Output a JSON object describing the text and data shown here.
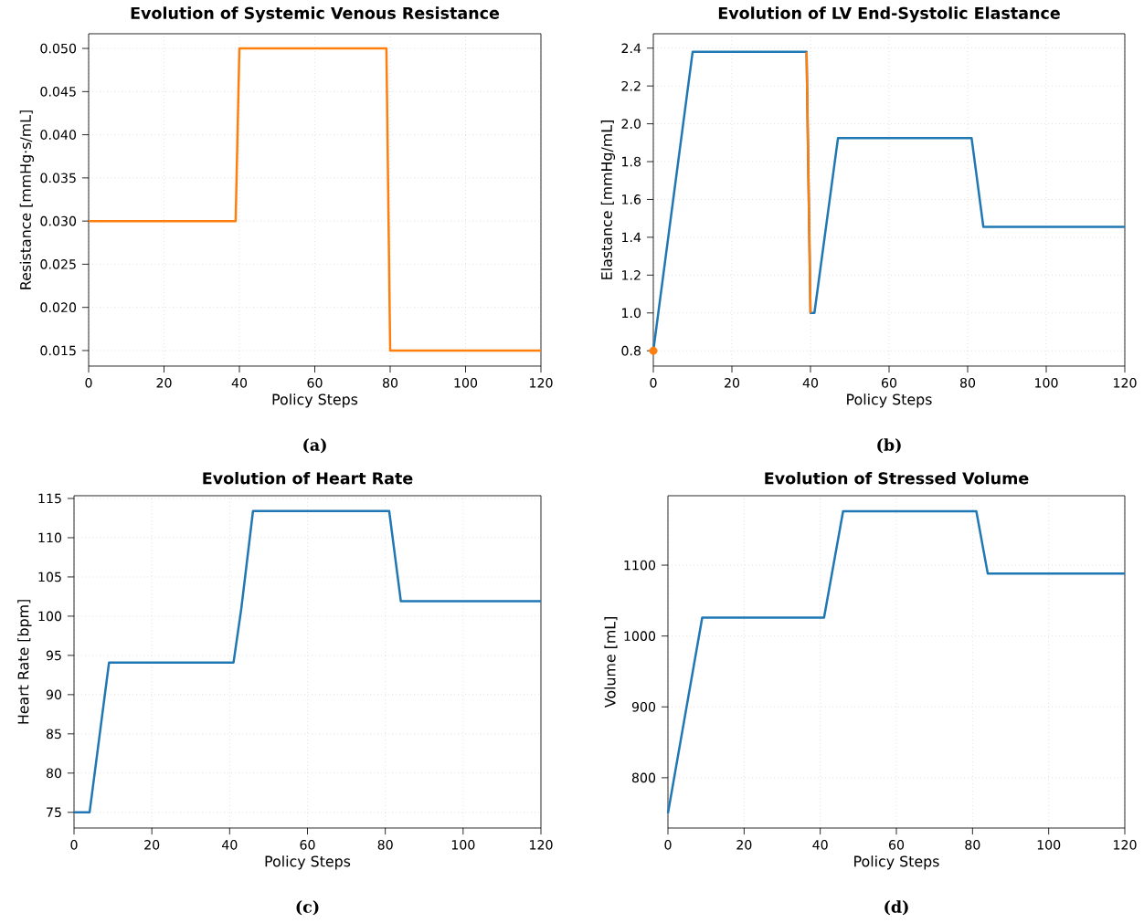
{
  "chart_data": [
    {
      "type": "line",
      "title": "Evolution of Systemic Venous Resistance",
      "xlabel": "Policy Steps",
      "ylabel": "Resistance [mmHg·s/mL]",
      "annotations": [
        "(a)"
      ],
      "grid": true,
      "xlim": [
        0,
        120
      ],
      "ylim": [
        0.0132,
        0.0517
      ],
      "xticks": [
        0,
        20,
        40,
        60,
        80,
        100,
        120
      ],
      "yticks": [
        {
          "value": 0.015,
          "label": "0.015"
        },
        {
          "value": 0.02,
          "label": "0.020"
        },
        {
          "value": 0.025,
          "label": "0.025"
        },
        {
          "value": 0.03,
          "label": "0.030"
        },
        {
          "value": 0.035,
          "label": "0.035"
        },
        {
          "value": 0.04,
          "label": "0.040"
        },
        {
          "value": 0.045,
          "label": "0.045"
        },
        {
          "value": 0.05,
          "label": "0.050"
        }
      ],
      "series": [
        {
          "color": "#ff7f0e",
          "x": [
            0,
            39,
            40,
            79,
            80,
            120
          ],
          "values": [
            0.03,
            0.03,
            0.05,
            0.05,
            0.015,
            0.015
          ]
        }
      ]
    },
    {
      "type": "line",
      "title": "Evolution of LV End-Systolic Elastance",
      "xlabel": "Policy Steps",
      "ylabel": "Elastance [mmHg/mL]",
      "annotations": [
        "(b)"
      ],
      "grid": true,
      "xlim": [
        0,
        120
      ],
      "ylim": [
        0.719,
        2.476
      ],
      "xticks": [
        0,
        20,
        40,
        60,
        80,
        100,
        120
      ],
      "yticks": [
        {
          "value": 0.8,
          "label": "0.8"
        },
        {
          "value": 1.0,
          "label": "1.0"
        },
        {
          "value": 1.2,
          "label": "1.2"
        },
        {
          "value": 1.4,
          "label": "1.4"
        },
        {
          "value": 1.6,
          "label": "1.6"
        },
        {
          "value": 1.8,
          "label": "1.8"
        },
        {
          "value": 2.0,
          "label": "2.0"
        },
        {
          "value": 2.2,
          "label": "2.2"
        },
        {
          "value": 2.4,
          "label": "2.4"
        }
      ],
      "series": [
        {
          "color": "#1f77b4",
          "x": [
            0,
            10,
            39,
            40,
            41,
            47,
            81,
            84,
            120
          ],
          "values": [
            0.8,
            2.38,
            2.38,
            1.0,
            1.0,
            1.925,
            1.925,
            1.455,
            1.455
          ]
        },
        {
          "color": "#ff7f0e",
          "x": [
            39,
            40
          ],
          "values": [
            2.38,
            1.0
          ]
        },
        {
          "type": "scatter",
          "marker": "circle",
          "color": "#ff7f0e",
          "x": [
            0
          ],
          "values": [
            0.8
          ]
        }
      ]
    },
    {
      "type": "line",
      "title": "Evolution of Heart Rate",
      "xlabel": "Policy Steps",
      "ylabel": "Heart Rate [bpm]",
      "annotations": [
        "(c)"
      ],
      "grid": true,
      "xlim": [
        0,
        120
      ],
      "ylim": [
        73.0,
        115.35
      ],
      "xticks": [
        0,
        20,
        40,
        60,
        80,
        100,
        120
      ],
      "yticks": [
        75,
        80,
        85,
        90,
        95,
        100,
        105,
        110,
        115
      ],
      "series": [
        {
          "color": "#1f77b4",
          "x": [
            0,
            4,
            9,
            41,
            43,
            46,
            81,
            84,
            120
          ],
          "values": [
            75,
            75,
            94.1,
            94.1,
            101,
            113.4,
            113.4,
            101.9,
            101.9
          ]
        }
      ]
    },
    {
      "type": "line",
      "title": "Evolution of Stressed Volume",
      "xlabel": "Policy Steps",
      "ylabel": "Volume [mL]",
      "annotations": [
        "(d)"
      ],
      "grid": true,
      "xlim": [
        0,
        120
      ],
      "ylim": [
        729,
        1198
      ],
      "xticks": [
        0,
        20,
        40,
        60,
        80,
        100,
        120
      ],
      "yticks": [
        800,
        900,
        1000,
        1100
      ],
      "series": [
        {
          "color": "#1f77b4",
          "x": [
            0,
            9,
            41,
            46,
            81,
            84,
            120
          ],
          "values": [
            750,
            1026,
            1026,
            1176,
            1176,
            1088,
            1088
          ]
        }
      ]
    }
  ]
}
